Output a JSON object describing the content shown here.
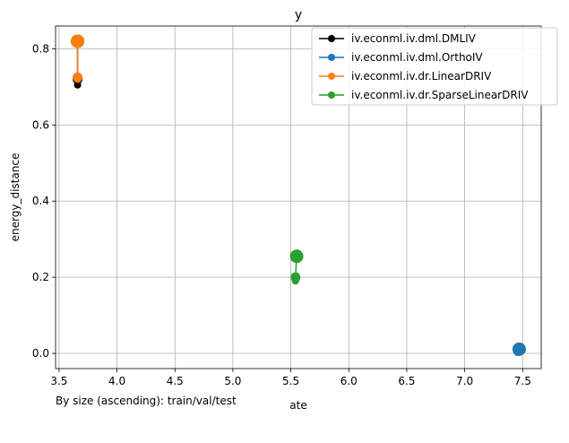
{
  "chart_data": {
    "type": "scatter",
    "title": "y",
    "xlabel": "ate",
    "ylabel": "energy_distance",
    "xlim": [
      3.47,
      7.66
    ],
    "ylim": [
      -0.04,
      0.86
    ],
    "xticks": [
      "3.5",
      "4.0",
      "4.5",
      "5.0",
      "5.5",
      "6.0",
      "6.5",
      "7.0",
      "7.5"
    ],
    "yticks": [
      "0.0",
      "0.2",
      "0.4",
      "0.6",
      "0.8"
    ],
    "grid": true,
    "legend_position": "top-right",
    "series": [
      {
        "name": "iv.econml.iv.dml.DMLIV",
        "color": "#000000",
        "points": [
          {
            "x": 3.66,
            "y": 0.705,
            "size": "small"
          },
          {
            "x": 3.66,
            "y": 0.72,
            "size": "medium"
          },
          {
            "x": 3.66,
            "y": 0.82,
            "size": "large"
          }
        ]
      },
      {
        "name": "iv.econml.iv.dml.OrthoIV",
        "color": "#1f77b4",
        "points": [
          {
            "x": 7.46,
            "y": 0.003,
            "size": "small"
          },
          {
            "x": 7.46,
            "y": 0.006,
            "size": "medium"
          },
          {
            "x": 7.47,
            "y": 0.011,
            "size": "large"
          }
        ]
      },
      {
        "name": "iv.econml.iv.dr.LinearDRIV",
        "color": "#ff7f0e",
        "points": [
          {
            "x": 3.66,
            "y": 0.72,
            "size": "small"
          },
          {
            "x": 3.66,
            "y": 0.725,
            "size": "medium"
          },
          {
            "x": 3.66,
            "y": 0.82,
            "size": "large"
          }
        ]
      },
      {
        "name": "iv.econml.iv.dr.SparseLinearDRIV",
        "color": "#2ca02c",
        "points": [
          {
            "x": 5.54,
            "y": 0.19,
            "size": "small"
          },
          {
            "x": 5.54,
            "y": 0.2,
            "size": "medium"
          },
          {
            "x": 5.55,
            "y": 0.255,
            "size": "large"
          }
        ]
      }
    ],
    "annotation": "By size (ascending): train/val/test"
  }
}
